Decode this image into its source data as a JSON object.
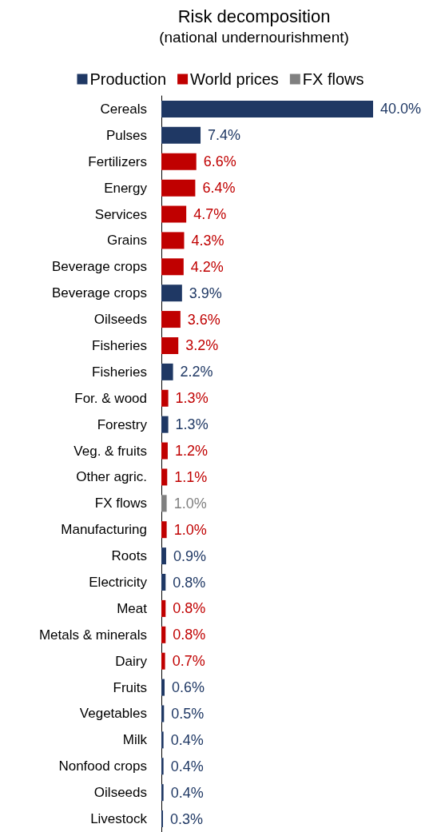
{
  "chart_data": {
    "type": "bar",
    "title": "Risk decomposition",
    "subtitle": "(national undernourishment)",
    "orientation": "horizontal",
    "legend": "top",
    "categories": [
      "Cereals",
      "Pulses",
      "Fertilizers",
      "Energy",
      "Services",
      "Grains",
      "Beverage crops",
      "Beverage crops",
      "Oilseeds",
      "Fisheries",
      "Fisheries",
      "For. & wood",
      "Forestry",
      "Veg. & fruits",
      "Other agric.",
      "FX flows",
      "Manufacturing",
      "Roots",
      "Electricity",
      "Meat",
      "Metals & minerals",
      "Dairy",
      "Fruits",
      "Vegetables",
      "Milk",
      "Nonfood crops",
      "Oilseeds",
      "Livestock"
    ],
    "series": [
      {
        "name": "Production",
        "color": "#1f3864",
        "values": [
          40.0,
          7.4,
          null,
          null,
          null,
          null,
          null,
          3.9,
          null,
          null,
          2.2,
          null,
          1.3,
          null,
          null,
          null,
          null,
          0.9,
          0.8,
          null,
          null,
          null,
          0.6,
          0.5,
          0.4,
          0.4,
          0.4,
          0.3
        ],
        "value_labels": [
          "40.0%",
          "7.4%",
          null,
          null,
          null,
          null,
          null,
          "3.9%",
          null,
          null,
          "2.2%",
          null,
          "1.3%",
          null,
          null,
          null,
          null,
          "0.9%",
          "0.8%",
          null,
          null,
          null,
          "0.6%",
          "0.5%",
          "0.4%",
          "0.4%",
          "0.4%",
          "0.3%"
        ]
      },
      {
        "name": "World prices",
        "color": "#c00000",
        "values": [
          null,
          null,
          6.6,
          6.4,
          4.7,
          4.3,
          4.2,
          null,
          3.6,
          3.2,
          null,
          1.3,
          null,
          1.2,
          1.1,
          null,
          1.0,
          null,
          null,
          0.8,
          0.8,
          0.7,
          null,
          null,
          null,
          null,
          null,
          null
        ],
        "value_labels": [
          null,
          null,
          "6.6%",
          "6.4%",
          "4.7%",
          "4.3%",
          "4.2%",
          null,
          "3.6%",
          "3.2%",
          null,
          "1.3%",
          null,
          "1.2%",
          "1.1%",
          null,
          "1.0%",
          null,
          null,
          "0.8%",
          "0.8%",
          "0.7%",
          null,
          null,
          null,
          null,
          null,
          null
        ]
      },
      {
        "name": "FX flows",
        "color": "#808080",
        "values": [
          null,
          null,
          null,
          null,
          null,
          null,
          null,
          null,
          null,
          null,
          null,
          null,
          null,
          null,
          null,
          1.0,
          null,
          null,
          null,
          null,
          null,
          null,
          null,
          null,
          null,
          null,
          null,
          null
        ],
        "value_labels": [
          null,
          null,
          null,
          null,
          null,
          null,
          null,
          null,
          null,
          null,
          null,
          null,
          null,
          null,
          null,
          "1.0%",
          null,
          null,
          null,
          null,
          null,
          null,
          null,
          null,
          null,
          null,
          null,
          null
        ]
      }
    ]
  }
}
